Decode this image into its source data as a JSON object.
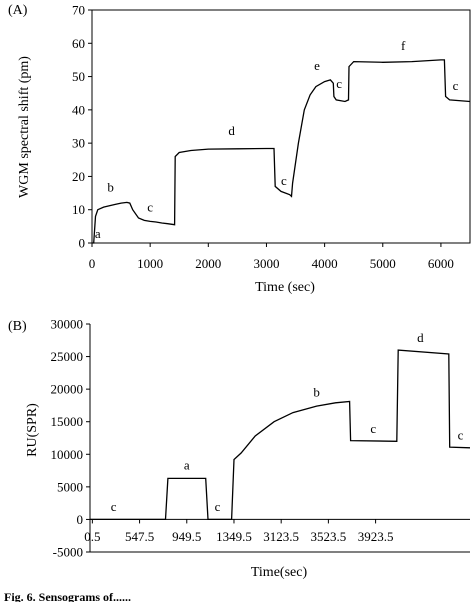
{
  "caption": "Fig. 6. Sensograms of......",
  "chart_data": [
    {
      "panel": "(A)",
      "type": "line",
      "xlabel": "Time (sec)",
      "ylabel": "WGM spectral shift (pm)",
      "xlim": [
        0,
        6500
      ],
      "ylim": [
        0,
        70
      ],
      "xticks": [
        0,
        1000,
        2000,
        3000,
        4000,
        5000,
        6000
      ],
      "yticks": [
        0,
        10,
        20,
        30,
        40,
        50,
        60,
        70
      ],
      "series": [
        {
          "points": [
            [
              0,
              0
            ],
            [
              30,
              0
            ],
            [
              60,
              8
            ],
            [
              100,
              10
            ],
            [
              200,
              10.8
            ],
            [
              300,
              11.2
            ],
            [
              400,
              11.6
            ],
            [
              500,
              12
            ],
            [
              600,
              12.2
            ],
            [
              650,
              12
            ],
            [
              700,
              10
            ],
            [
              800,
              7.5
            ],
            [
              900,
              6.8
            ],
            [
              1000,
              6.5
            ],
            [
              1100,
              6.3
            ],
            [
              1200,
              6
            ],
            [
              1300,
              5.8
            ],
            [
              1420,
              5.5
            ],
            [
              1430,
              26
            ],
            [
              1500,
              27.2
            ],
            [
              1700,
              27.8
            ],
            [
              2000,
              28.2
            ],
            [
              2500,
              28.3
            ],
            [
              3000,
              28.4
            ],
            [
              3130,
              28.4
            ],
            [
              3150,
              17
            ],
            [
              3250,
              15.5
            ],
            [
              3400,
              14.5
            ],
            [
              3430,
              14
            ],
            [
              3450,
              18
            ],
            [
              3550,
              30
            ],
            [
              3650,
              40
            ],
            [
              3750,
              44.5
            ],
            [
              3850,
              47
            ],
            [
              4000,
              48.5
            ],
            [
              4100,
              49
            ],
            [
              4150,
              48
            ],
            [
              4160,
              44
            ],
            [
              4200,
              43
            ],
            [
              4350,
              42.5
            ],
            [
              4410,
              43
            ],
            [
              4420,
              53
            ],
            [
              4500,
              54.5
            ],
            [
              5000,
              54.3
            ],
            [
              5500,
              54.5
            ],
            [
              6000,
              55
            ],
            [
              6060,
              55
            ],
            [
              6080,
              44
            ],
            [
              6150,
              43
            ],
            [
              6500,
              42.5
            ]
          ]
        }
      ],
      "annotations": [
        {
          "label": "a",
          "x": 100,
          "y": 1.5
        },
        {
          "label": "b",
          "x": 320,
          "y": 15.5
        },
        {
          "label": "c",
          "x": 1000,
          "y": 9.5
        },
        {
          "label": "d",
          "x": 2400,
          "y": 32.5
        },
        {
          "label": "c",
          "x": 3300,
          "y": 17.5
        },
        {
          "label": "e",
          "x": 3870,
          "y": 52
        },
        {
          "label": "c",
          "x": 4250,
          "y": 46.5
        },
        {
          "label": "f",
          "x": 5350,
          "y": 58
        },
        {
          "label": "c",
          "x": 6250,
          "y": 46
        }
      ]
    },
    {
      "panel": "(B)",
      "type": "line",
      "xlabel": "Time(sec)",
      "ylabel": "RU(SPR)",
      "ylim": [
        -5000,
        30000
      ],
      "xticks": [
        "0.5",
        "547.5",
        "949.5",
        "1349.5",
        "3123.5",
        "3523.5",
        "3923.5"
      ],
      "yticks": [
        -5000,
        0,
        5000,
        10000,
        15000,
        20000,
        25000,
        30000
      ],
      "series": [
        {
          "points": [
            [
              0,
              0
            ],
            [
              1.6,
              0
            ],
            [
              1.65,
              6300
            ],
            [
              2.45,
              6300
            ],
            [
              2.5,
              0
            ],
            [
              3.0,
              0
            ],
            [
              3.05,
              9200
            ],
            [
              3.2,
              10200
            ],
            [
              3.5,
              12800
            ],
            [
              3.9,
              15000
            ],
            [
              4.3,
              16400
            ],
            [
              4.8,
              17400
            ],
            [
              5.2,
              17900
            ],
            [
              5.5,
              18100
            ],
            [
              5.52,
              12100
            ],
            [
              6.5,
              12000
            ],
            [
              6.53,
              26000
            ],
            [
              7.6,
              25400
            ],
            [
              7.62,
              11100
            ],
            [
              8.05,
              11000
            ]
          ]
        }
      ],
      "annotations": [
        {
          "label": "c",
          "x": 0.5,
          "y": 1300
        },
        {
          "label": "a",
          "x": 2.05,
          "y": 7700
        },
        {
          "label": "c",
          "x": 2.7,
          "y": 1300
        },
        {
          "label": "b",
          "x": 4.8,
          "y": 18900
        },
        {
          "label": "c",
          "x": 6.0,
          "y": 13300
        },
        {
          "label": "d",
          "x": 7.0,
          "y": 27200
        },
        {
          "label": "c",
          "x": 7.85,
          "y": 12300
        }
      ]
    }
  ]
}
